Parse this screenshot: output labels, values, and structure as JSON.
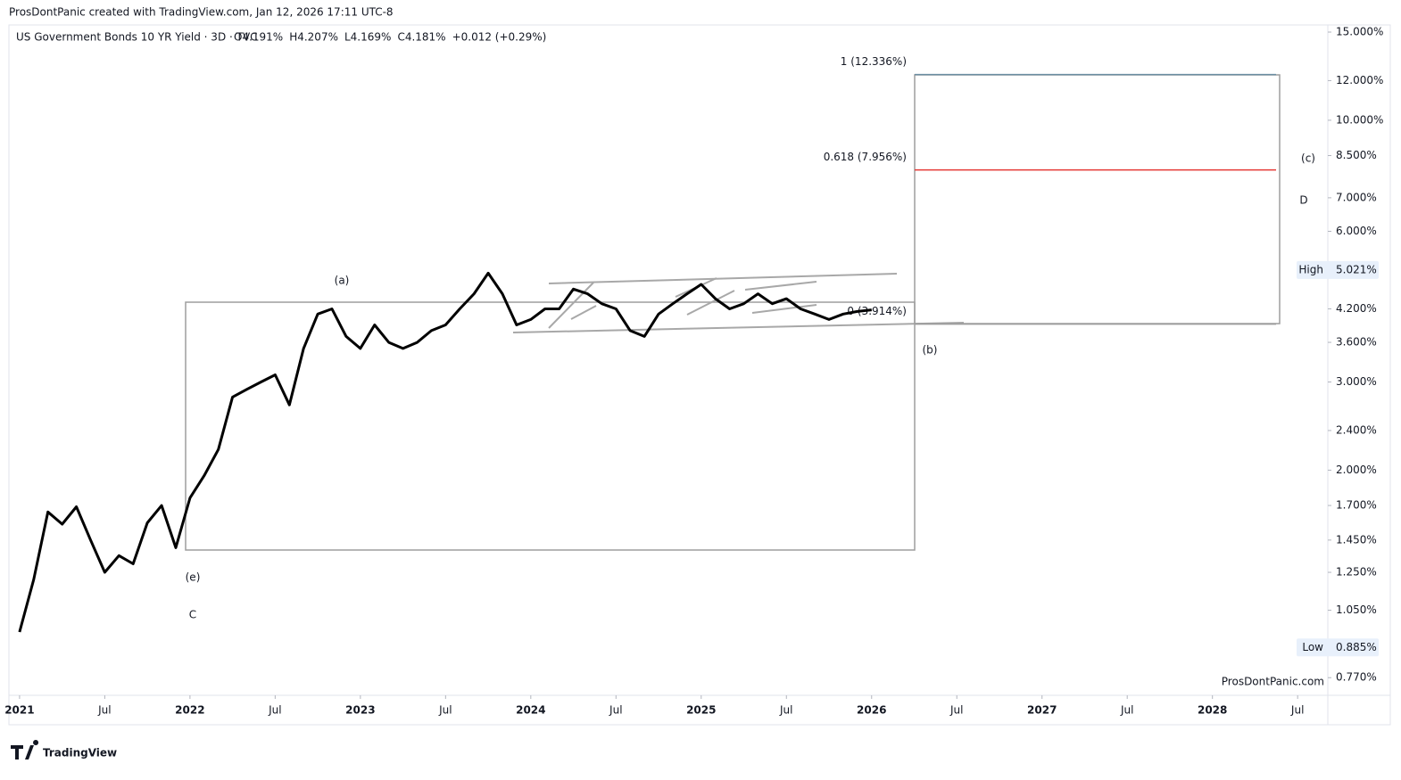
{
  "header": "ProsDontPanic created with TradingView.com, Jan 12, 2026 17:11 UTC-8",
  "brand": "TradingView",
  "watermark": "ProsDontPanic.com",
  "chart_data": {
    "type": "line",
    "title": "US Government Bonds 10 YR Yield · 3D · TVC",
    "ohlc": [
      "O4.191%",
      "H4.207%",
      "L4.169%",
      "C4.181%",
      "+0.012 (+0.29%)"
    ],
    "log_scale": true,
    "color": "#000000",
    "x": [
      "2021-01",
      "2021-02",
      "2021-03",
      "2021-04",
      "2021-05",
      "2021-06",
      "2021-07",
      "2021-08",
      "2021-09",
      "2021-10",
      "2021-11",
      "2021-12",
      "2022-01",
      "2022-02",
      "2022-03",
      "2022-04",
      "2022-05",
      "2022-06",
      "2022-07",
      "2022-08",
      "2022-09",
      "2022-10",
      "2022-11",
      "2022-12",
      "2023-01",
      "2023-02",
      "2023-03",
      "2023-04",
      "2023-05",
      "2023-06",
      "2023-07",
      "2023-08",
      "2023-09",
      "2023-10",
      "2023-11",
      "2023-12",
      "2024-01",
      "2024-02",
      "2024-03",
      "2024-04",
      "2024-05",
      "2024-06",
      "2024-07",
      "2024-08",
      "2024-09",
      "2024-10",
      "2024-11",
      "2024-12",
      "2025-01",
      "2025-02",
      "2025-03",
      "2025-04",
      "2025-05",
      "2025-06",
      "2025-07",
      "2025-08",
      "2025-09",
      "2025-10",
      "2025-11",
      "2025-12",
      "2026-01"
    ],
    "values": [
      0.95,
      1.21,
      1.65,
      1.56,
      1.69,
      1.45,
      1.25,
      1.35,
      1.3,
      1.57,
      1.7,
      1.4,
      1.76,
      1.95,
      2.2,
      2.8,
      2.9,
      3.0,
      3.1,
      2.7,
      3.5,
      4.1,
      4.2,
      3.7,
      3.5,
      3.9,
      3.6,
      3.5,
      3.6,
      3.8,
      3.9,
      4.2,
      4.5,
      4.95,
      4.5,
      3.9,
      4.0,
      4.2,
      4.2,
      4.6,
      4.5,
      4.3,
      4.2,
      3.8,
      3.7,
      4.1,
      4.3,
      4.5,
      4.7,
      4.4,
      4.2,
      4.3,
      4.5,
      4.3,
      4.4,
      4.2,
      4.1,
      4.0,
      4.1,
      4.15,
      4.18
    ],
    "xlim": [
      "2020-12",
      "2028-09"
    ],
    "xticks": [
      {
        "value": "2021-01",
        "label": "2021"
      },
      {
        "value": "2021-07",
        "label": "Jul"
      },
      {
        "value": "2022-01",
        "label": "2022"
      },
      {
        "value": "2022-07",
        "label": "Jul"
      },
      {
        "value": "2023-01",
        "label": "2023"
      },
      {
        "value": "2023-07",
        "label": "Jul"
      },
      {
        "value": "2024-01",
        "label": "2024"
      },
      {
        "value": "2024-07",
        "label": "Jul"
      },
      {
        "value": "2025-01",
        "label": "2025"
      },
      {
        "value": "2025-07",
        "label": "Jul"
      },
      {
        "value": "2026-01",
        "label": "2026"
      },
      {
        "value": "2026-07",
        "label": "Jul"
      },
      {
        "value": "2027-01",
        "label": "2027"
      },
      {
        "value": "2027-07",
        "label": "Jul"
      },
      {
        "value": "2028-01",
        "label": "2028"
      },
      {
        "value": "2028-07",
        "label": "Jul"
      }
    ],
    "ylim": [
      0.71,
      15.5
    ],
    "yticks": [
      {
        "value": 15,
        "label": "15.000%"
      },
      {
        "value": 12,
        "label": "12.000%"
      },
      {
        "value": 10,
        "label": "10.000%"
      },
      {
        "value": 8.5,
        "label": "8.500%"
      },
      {
        "value": 7,
        "label": "7.000%"
      },
      {
        "value": 6,
        "label": "6.000%"
      },
      {
        "value": 4.2,
        "label": "4.200%"
      },
      {
        "value": 3.6,
        "label": "3.600%"
      },
      {
        "value": 3,
        "label": "3.000%"
      },
      {
        "value": 2.4,
        "label": "2.400%"
      },
      {
        "value": 2,
        "label": "2.000%"
      },
      {
        "value": 1.7,
        "label": "1.700%"
      },
      {
        "value": 1.45,
        "label": "1.450%"
      },
      {
        "value": 1.25,
        "label": "1.250%"
      },
      {
        "value": 1.05,
        "label": "1.050%"
      },
      {
        "value": 0.77,
        "label": "0.770%"
      }
    ],
    "high": {
      "name": "High",
      "value": 5.021,
      "label": "5.021%"
    },
    "low": {
      "name": "Low",
      "value": 0.885,
      "label": "0.885%"
    },
    "fib_levels": [
      {
        "value": 12.336,
        "label": "1 (12.336%)",
        "color": "#6b8fa3"
      },
      {
        "value": 7.956,
        "label": "0.618 (7.956%)",
        "color": "#e53935"
      },
      {
        "value": 3.914,
        "label": "0 (3.914%)",
        "color": "#9e9e9e"
      }
    ],
    "wave_labels": [
      "(a)",
      "(b)",
      "(c)",
      "(e)",
      "C",
      "D"
    ]
  }
}
